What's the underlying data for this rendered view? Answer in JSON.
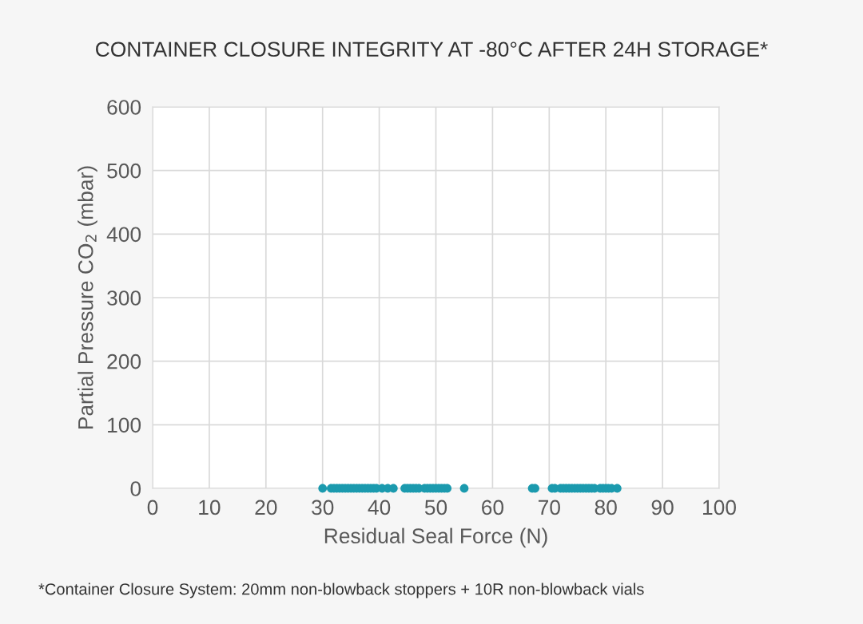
{
  "chart_data": {
    "type": "scatter",
    "title": "CONTAINER CLOSURE INTEGRITY AT -80°C AFTER 24H STORAGE*",
    "xlabel": "Residual Seal Force (N)",
    "ylabel": "Partial Pressure CO$_{2}$ (mbar)",
    "series": [
      {
        "color": "#1b9aae",
        "x": [
          30,
          31.5,
          32,
          32.5,
          33,
          33.5,
          34,
          34.5,
          35,
          35.5,
          36,
          36.5,
          37,
          37.5,
          38,
          38.5,
          39,
          39.5,
          40.5,
          41.5,
          42.5,
          44.5,
          45,
          45.5,
          46,
          46.5,
          47,
          48,
          48.5,
          49,
          49.5,
          50,
          50.5,
          51,
          51.5,
          52,
          55,
          67,
          67.5,
          70.5,
          71,
          72,
          72.5,
          73,
          73.5,
          74,
          74.5,
          75,
          75.5,
          76,
          76.5,
          77,
          77.5,
          78,
          79,
          79.5,
          80,
          80.5,
          81,
          82
        ],
        "values": [
          0,
          0,
          0,
          0,
          0,
          0,
          0,
          0,
          0,
          0,
          0,
          0,
          0,
          0,
          0,
          0,
          0,
          0,
          0,
          0,
          0,
          0,
          0,
          0,
          0,
          0,
          0,
          0,
          0,
          0,
          0,
          0,
          0,
          0,
          0,
          0,
          0,
          0,
          0,
          0,
          0,
          0,
          0,
          0,
          0,
          0,
          0,
          0,
          0,
          0,
          0,
          0,
          0,
          0,
          0,
          0,
          0,
          0,
          0,
          0
        ]
      }
    ],
    "xlim": [
      0,
      100
    ],
    "xticks": [
      0,
      10,
      20,
      30,
      40,
      50,
      60,
      70,
      80,
      90,
      100
    ],
    "ylim": [
      0,
      600
    ],
    "yticks": [
      0,
      100,
      200,
      300,
      400,
      500,
      600
    ],
    "grid": true,
    "marker": "circle",
    "annotations": [
      "*Container Closure System: 20mm non-blowback stoppers + 10R non-blowback vials"
    ]
  }
}
